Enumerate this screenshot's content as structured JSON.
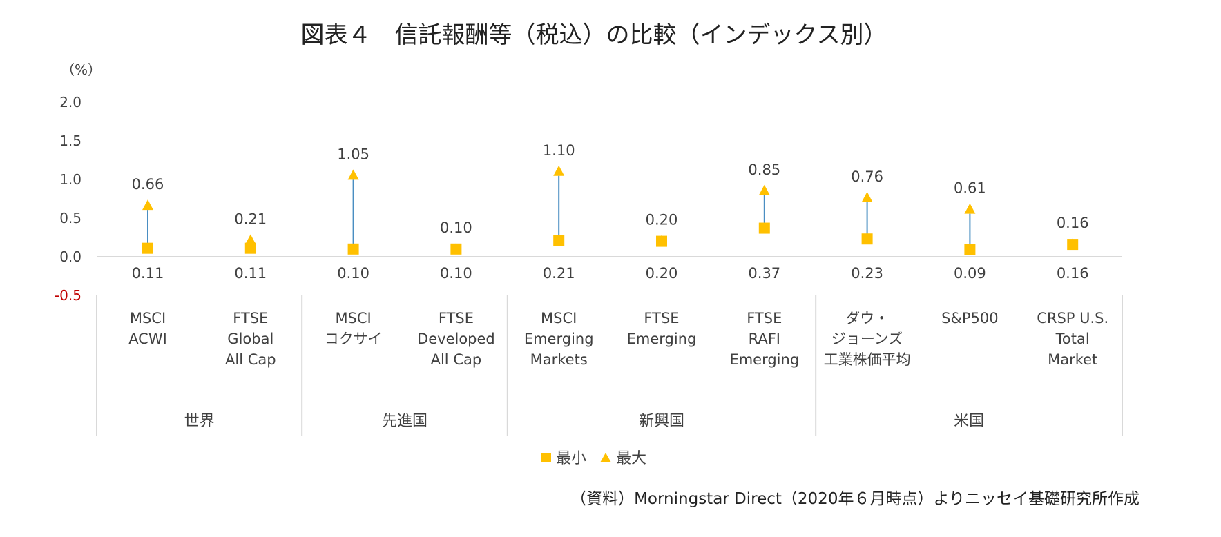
{
  "title": "図表４　信託報酬等（税込）の比較（インデックス別）",
  "source": "（資料）Morningstar Direct（2020年６月時点）よりニッセイ基礎研究所作成",
  "chart_data": {
    "type": "scatter",
    "unit_label": "（%）",
    "y_ticks": [
      "2.0",
      "1.5",
      "1.0",
      "0.5",
      "0.0",
      "-0.5"
    ],
    "y_tick_values": [
      2.0,
      1.5,
      1.0,
      0.5,
      0.0,
      -0.5
    ],
    "ylim": [
      -0.5,
      2.0
    ],
    "categories": [
      {
        "lines": [
          "MSCI",
          "ACWI"
        ],
        "min": 0.11,
        "max": 0.66,
        "min_label": "0.11",
        "max_label": "0.66"
      },
      {
        "lines": [
          "FTSE",
          "Global",
          "All Cap"
        ],
        "min": 0.11,
        "max": 0.21,
        "min_label": "0.11",
        "max_label": "0.21"
      },
      {
        "lines": [
          "MSCI",
          "コクサイ"
        ],
        "min": 0.1,
        "max": 1.05,
        "min_label": "0.10",
        "max_label": "1.05"
      },
      {
        "lines": [
          "FTSE",
          "Developed",
          "All Cap"
        ],
        "min": 0.1,
        "max": 0.1,
        "min_label": "0.10",
        "max_label": "0.10"
      },
      {
        "lines": [
          "MSCI",
          "Emerging",
          "Markets"
        ],
        "min": 0.21,
        "max": 1.1,
        "min_label": "0.21",
        "max_label": "1.10"
      },
      {
        "lines": [
          "FTSE",
          "Emerging"
        ],
        "min": 0.2,
        "max": 0.2,
        "min_label": "0.20",
        "max_label": "0.20"
      },
      {
        "lines": [
          "FTSE",
          "RAFI",
          "Emerging"
        ],
        "min": 0.37,
        "max": 0.85,
        "min_label": "0.37",
        "max_label": "0.85"
      },
      {
        "lines": [
          "ダウ・",
          "ジョーンズ",
          "工業株価平均"
        ],
        "min": 0.23,
        "max": 0.76,
        "min_label": "0.23",
        "max_label": "0.76"
      },
      {
        "lines": [
          "S&P500"
        ],
        "min": 0.09,
        "max": 0.61,
        "min_label": "0.09",
        "max_label": "0.61"
      },
      {
        "lines": [
          "CRSP U.S.",
          "Total",
          "Market"
        ],
        "min": 0.16,
        "max": 0.16,
        "min_label": "0.16",
        "max_label": "0.16"
      }
    ],
    "groups": [
      {
        "label": "世界",
        "span": 2
      },
      {
        "label": "先進国",
        "span": 2
      },
      {
        "label": "新興国",
        "span": 3
      },
      {
        "label": "米国",
        "span": 3
      }
    ],
    "series": [
      {
        "name": "最小",
        "marker": "square",
        "color": "#FFC000"
      },
      {
        "name": "最大",
        "marker": "triangle",
        "color": "#FFC000"
      }
    ],
    "range_line_color": "#4A8EC2",
    "grid": false,
    "legend_position": "bottom"
  }
}
